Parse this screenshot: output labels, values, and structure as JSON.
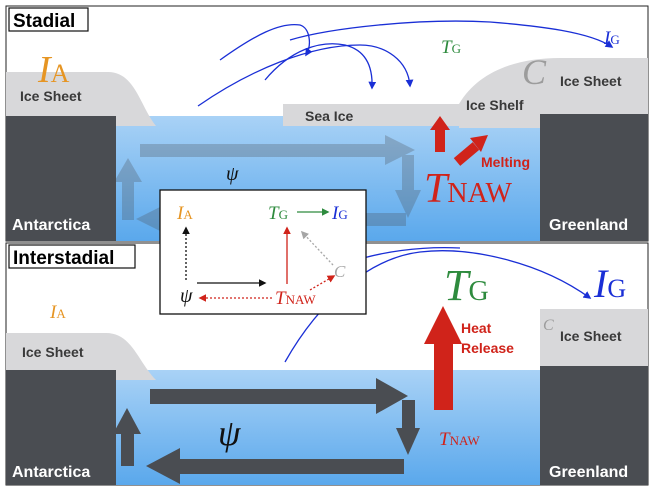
{
  "colors": {
    "orange": "#e69523",
    "green": "#2e8b3e",
    "blue": "#1a2fd6",
    "red": "#d0231a",
    "gray": "#a6a6a6",
    "dark": "#4a4d52",
    "ice": "#d8d8da",
    "water_top": "#a9d2f6",
    "water_bottom": "#5aa8ec"
  },
  "stadial": {
    "title": "Stadial",
    "ia_sym": "I",
    "ia_sub": "A",
    "ice_sheet_left": "Ice Sheet",
    "sea_ice": "Sea Ice",
    "ice_shelf": "Ice Shelf",
    "c_sym": "C",
    "ice_sheet_right": "Ice Sheet",
    "tg_sym": "T",
    "tg_sub": "G",
    "ig_sym": "I",
    "ig_sub": "G",
    "psi": "ψ",
    "melting": "Melting",
    "tnaw_sym": "T",
    "tnaw_sub": "NAW",
    "antarctica": "Antarctica",
    "greenland": "Greenland"
  },
  "interstadial": {
    "title": "Interstadial",
    "ia_sym": "I",
    "ia_sub": "A",
    "ice_sheet_left": "Ice Sheet",
    "c_sym": "C",
    "ice_sheet_right": "Ice Sheet",
    "tg_sym": "T",
    "tg_sub": "G",
    "ig_sym": "I",
    "ig_sub": "G",
    "heat1": "Heat",
    "heat2": "Release",
    "psi": "ψ",
    "tnaw_sym": "T",
    "tnaw_sub": "NAW",
    "antarctica": "Antarctica",
    "greenland": "Greenland"
  },
  "inset": {
    "ia_sym": "I",
    "ia_sub": "A",
    "tg_sym": "T",
    "tg_sub": "G",
    "ig_sym": "I",
    "ig_sub": "G",
    "c_sym": "C",
    "psi": "ψ",
    "tnaw_sym": "T",
    "tnaw_sub": "NAW"
  }
}
